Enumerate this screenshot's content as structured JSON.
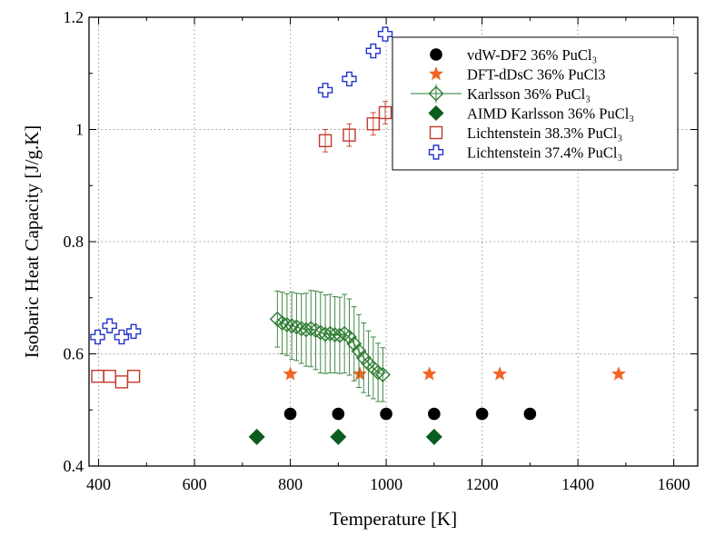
{
  "chart_data": {
    "type": "scatter",
    "xlabel": "Temperature [K]",
    "ylabel": "Isobaric Heat Capacity [J/g.K]",
    "xlim": [
      380,
      1650
    ],
    "ylim": [
      0.4,
      1.2
    ],
    "x_ticks": [
      400,
      600,
      800,
      1000,
      1200,
      1400,
      1600
    ],
    "y_ticks": [
      0.4,
      0.6,
      0.8,
      1,
      1.2
    ],
    "x_tick_labels": [
      "400",
      "600",
      "800",
      "1000",
      "1200",
      "1400",
      "1600"
    ],
    "y_tick_labels": [
      "0.4",
      "0.6",
      "0.8",
      "1",
      "1.2"
    ],
    "grid": true,
    "legend_position": "top-right",
    "series": [
      {
        "name": "vdW-DF2 36% PuCl₃",
        "marker": "circle",
        "color": "#000000",
        "x": [
          800,
          900,
          1000,
          1100,
          1200,
          1300
        ],
        "y": [
          0.493,
          0.493,
          0.493,
          0.493,
          0.493,
          0.493
        ]
      },
      {
        "name": "DFT-dDsC 36% PuCl3",
        "marker": "star",
        "color": "#f26522",
        "x": [
          800,
          945,
          1090,
          1237,
          1485
        ],
        "y": [
          0.564,
          0.564,
          0.564,
          0.564,
          0.564
        ]
      },
      {
        "name": "Karlsson 36% PuCl₃",
        "marker": "diamond-open",
        "color": "#2e7d32",
        "line": true,
        "x": [
          773,
          783,
          793,
          803,
          813,
          823,
          833,
          843,
          853,
          863,
          873,
          883,
          893,
          903,
          913,
          923,
          933,
          943,
          953,
          963,
          973,
          983,
          993
        ],
        "y": [
          0.662,
          0.655,
          0.652,
          0.65,
          0.648,
          0.645,
          0.643,
          0.645,
          0.642,
          0.638,
          0.635,
          0.636,
          0.634,
          0.633,
          0.636,
          0.63,
          0.618,
          0.605,
          0.593,
          0.583,
          0.575,
          0.567,
          0.563
        ],
        "error": [
          0.05,
          0.055,
          0.055,
          0.06,
          0.06,
          0.062,
          0.065,
          0.068,
          0.07,
          0.072,
          0.07,
          0.07,
          0.068,
          0.068,
          0.07,
          0.068,
          0.066,
          0.065,
          0.062,
          0.058,
          0.055,
          0.052,
          0.048
        ]
      },
      {
        "name": "AIMD Karlsson 36% PuCl₃",
        "marker": "diamond-filled",
        "color": "#0b5d1e",
        "x": [
          730,
          900,
          1100
        ],
        "y": [
          0.452,
          0.452,
          0.452
        ]
      },
      {
        "name": "Lichtenstein 38.3% PuCl₃",
        "marker": "square-open",
        "color": "#c0392b",
        "x": [
          398,
          423,
          448,
          473,
          873,
          923,
          973,
          998
        ],
        "y": [
          0.56,
          0.56,
          0.55,
          0.56,
          0.98,
          0.99,
          1.01,
          1.03
        ],
        "error": [
          0,
          0,
          0,
          0,
          0.02,
          0.02,
          0.02,
          0.02
        ]
      },
      {
        "name": "Lichtenstein 37.4% PuCl₃",
        "marker": "cross-open",
        "color": "#2233cc",
        "x": [
          398,
          423,
          448,
          473,
          873,
          923,
          973,
          998
        ],
        "y": [
          0.63,
          0.65,
          0.63,
          0.64,
          1.07,
          1.09,
          1.14,
          1.17
        ]
      }
    ]
  }
}
